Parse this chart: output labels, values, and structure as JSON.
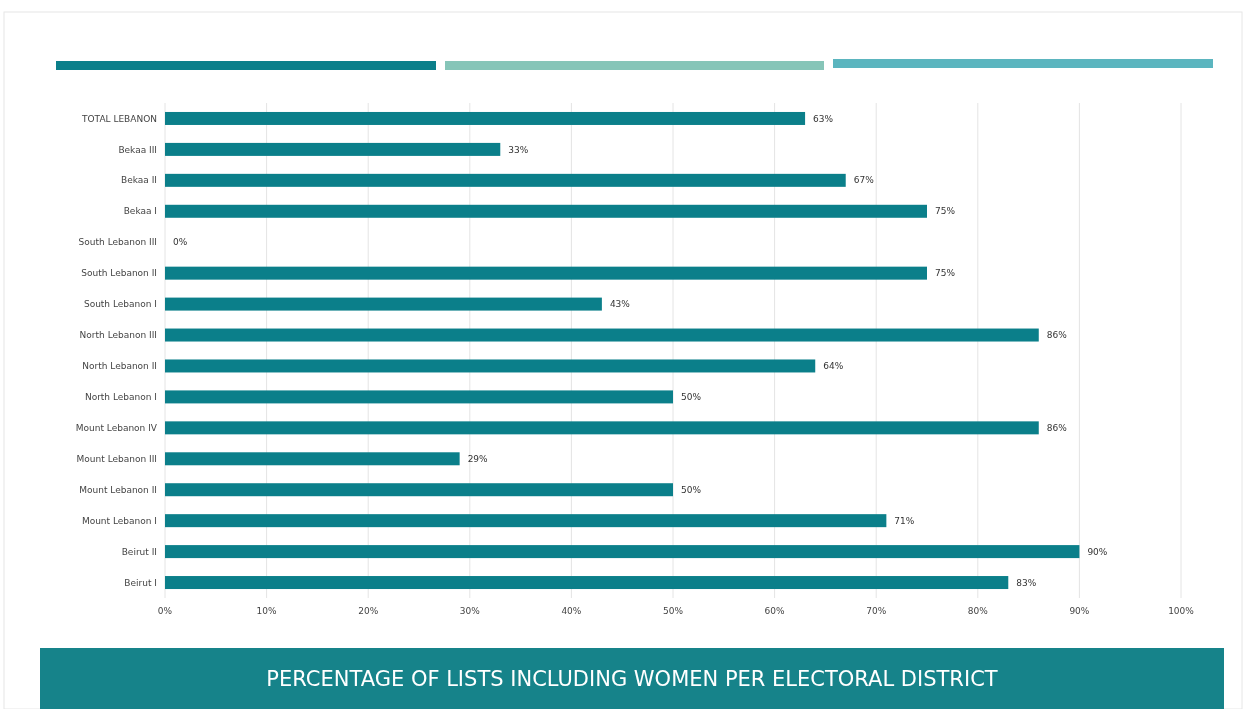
{
  "chart_data": {
    "type": "bar",
    "orientation": "horizontal",
    "title": "PERCENTAGE OF LISTS INCLUDING WOMEN PER ELECTORAL DISTRICT",
    "categories": [
      "TOTAL LEBANON",
      "Bekaa III",
      "Bekaa II",
      "Bekaa I",
      "South Lebanon III",
      "South Lebanon II",
      "South Lebanon I",
      "North Lebanon III",
      "North Lebanon II",
      "North Lebanon I",
      "Mount Lebanon IV",
      "Mount Lebanon III",
      "Mount Lebanon II",
      "Mount Lebanon I",
      "Beirut II",
      "Beirut I"
    ],
    "values": [
      63,
      33,
      67,
      75,
      0,
      75,
      43,
      86,
      64,
      50,
      86,
      29,
      50,
      71,
      90,
      83
    ],
    "value_labels": [
      "63%",
      "33%",
      "67%",
      "75%",
      "0%",
      "75%",
      "43%",
      "86%",
      "64%",
      "50%",
      "86%",
      "29%",
      "50%",
      "71%",
      "90%",
      "83%"
    ],
    "color": "#0b7f8a",
    "xlim": [
      0,
      100
    ],
    "xticks": [
      {
        "value": 0,
        "label": "0%"
      },
      {
        "value": 10,
        "label": "10%"
      },
      {
        "value": 20,
        "label": "20%"
      },
      {
        "value": 30,
        "label": "30%"
      },
      {
        "value": 40,
        "label": "40%"
      },
      {
        "value": 50,
        "label": "50%"
      },
      {
        "value": 60,
        "label": "60%"
      },
      {
        "value": 70,
        "label": "70%"
      },
      {
        "value": 80,
        "label": "80%"
      },
      {
        "value": 90,
        "label": "90%"
      },
      {
        "value": 100,
        "label": "100%"
      }
    ],
    "grid": "x"
  }
}
